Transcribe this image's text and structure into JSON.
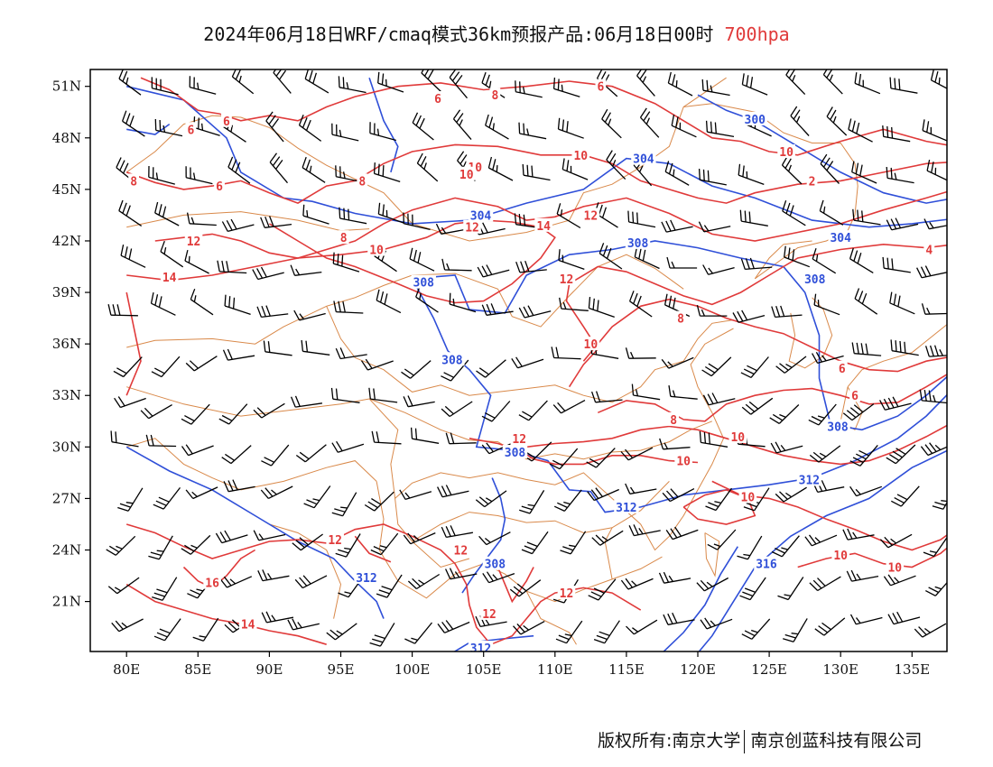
{
  "title": {
    "main": "2024年06月18日WRF/cmaq模式36km预报产品:06月18日00时",
    "level": "700hpa"
  },
  "colors": {
    "temperature": "#e03a3a",
    "height": "#2f4fd8",
    "boundary": "#d9894a",
    "wind": "#000000"
  },
  "axes": {
    "lon_ticks": [
      "80E",
      "85E",
      "90E",
      "95E",
      "100E",
      "105E",
      "110E",
      "115E",
      "120E",
      "125E",
      "130E",
      "135E"
    ],
    "lat_ticks": [
      "51N",
      "48N",
      "45N",
      "42N",
      "39N",
      "36N",
      "33N",
      "30N",
      "27N",
      "24N",
      "21N"
    ]
  },
  "contour_labels": {
    "temperature": [
      {
        "text": "6",
        "lon": 87.0,
        "lat": 49.0
      },
      {
        "text": "6",
        "lon": 84.5,
        "lat": 48.5
      },
      {
        "text": "8",
        "lon": 80.5,
        "lat": 45.5
      },
      {
        "text": "6",
        "lon": 86.5,
        "lat": 45.2
      },
      {
        "text": "8",
        "lon": 96.5,
        "lat": 45.5
      },
      {
        "text": "6",
        "lon": 101.8,
        "lat": 50.3
      },
      {
        "text": "8",
        "lon": 105.8,
        "lat": 50.5
      },
      {
        "text": "6",
        "lon": 113.2,
        "lat": 51.0
      },
      {
        "text": "10",
        "lon": 111.8,
        "lat": 47.0
      },
      {
        "text": "10",
        "lon": 104.4,
        "lat": 46.3
      },
      {
        "text": "10",
        "lon": 103.8,
        "lat": 45.9
      },
      {
        "text": "10",
        "lon": 126.2,
        "lat": 47.2
      },
      {
        "text": "2",
        "lon": 128.0,
        "lat": 45.5
      },
      {
        "text": "12",
        "lon": 104.2,
        "lat": 42.8
      },
      {
        "text": "14",
        "lon": 109.2,
        "lat": 42.9
      },
      {
        "text": "12",
        "lon": 112.5,
        "lat": 43.5
      },
      {
        "text": "12",
        "lon": 84.7,
        "lat": 42.0
      },
      {
        "text": "8",
        "lon": 95.2,
        "lat": 42.2
      },
      {
        "text": "10",
        "lon": 97.5,
        "lat": 41.5
      },
      {
        "text": "14",
        "lon": 83.0,
        "lat": 39.9
      },
      {
        "text": "12",
        "lon": 110.8,
        "lat": 39.8
      },
      {
        "text": "4",
        "lon": 136.2,
        "lat": 41.5
      },
      {
        "text": "8",
        "lon": 118.8,
        "lat": 37.5
      },
      {
        "text": "10",
        "lon": 112.5,
        "lat": 36.0
      },
      {
        "text": "6",
        "lon": 130.1,
        "lat": 34.6
      },
      {
        "text": "6",
        "lon": 131.0,
        "lat": 33.0
      },
      {
        "text": "8",
        "lon": 118.3,
        "lat": 31.6
      },
      {
        "text": "12",
        "lon": 107.5,
        "lat": 30.5
      },
      {
        "text": "10",
        "lon": 122.8,
        "lat": 30.6
      },
      {
        "text": "10",
        "lon": 119.0,
        "lat": 29.2
      },
      {
        "text": "10",
        "lon": 123.5,
        "lat": 27.1
      },
      {
        "text": "12",
        "lon": 94.6,
        "lat": 24.6
      },
      {
        "text": "12",
        "lon": 103.4,
        "lat": 24.0
      },
      {
        "text": "10",
        "lon": 130.0,
        "lat": 23.7
      },
      {
        "text": "10",
        "lon": 133.8,
        "lat": 23.0
      },
      {
        "text": "16",
        "lon": 86.0,
        "lat": 22.1
      },
      {
        "text": "12",
        "lon": 110.8,
        "lat": 21.5
      },
      {
        "text": "12",
        "lon": 105.4,
        "lat": 20.3
      },
      {
        "text": "14",
        "lon": 88.5,
        "lat": 19.7
      }
    ],
    "height": [
      {
        "text": "300",
        "lon": 124.0,
        "lat": 49.1
      },
      {
        "text": "304",
        "lon": 116.2,
        "lat": 46.8
      },
      {
        "text": "304",
        "lon": 104.8,
        "lat": 43.5
      },
      {
        "text": "304",
        "lon": 130.0,
        "lat": 42.2
      },
      {
        "text": "308",
        "lon": 115.8,
        "lat": 41.9
      },
      {
        "text": "308",
        "lon": 128.2,
        "lat": 39.8
      },
      {
        "text": "308",
        "lon": 100.8,
        "lat": 39.6
      },
      {
        "text": "308",
        "lon": 102.8,
        "lat": 35.1
      },
      {
        "text": "308",
        "lon": 129.8,
        "lat": 31.2
      },
      {
        "text": "308",
        "lon": 107.2,
        "lat": 29.7
      },
      {
        "text": "312",
        "lon": 127.8,
        "lat": 28.1
      },
      {
        "text": "312",
        "lon": 115.0,
        "lat": 26.5
      },
      {
        "text": "308",
        "lon": 105.8,
        "lat": 23.2
      },
      {
        "text": "312",
        "lon": 96.8,
        "lat": 22.4
      },
      {
        "text": "316",
        "lon": 124.8,
        "lat": 23.2
      },
      {
        "text": "312",
        "lon": 104.8,
        "lat": 18.3
      }
    ]
  },
  "footer": {
    "left": "版权所有:南京大学",
    "right": "南京创蓝科技有限公司"
  }
}
